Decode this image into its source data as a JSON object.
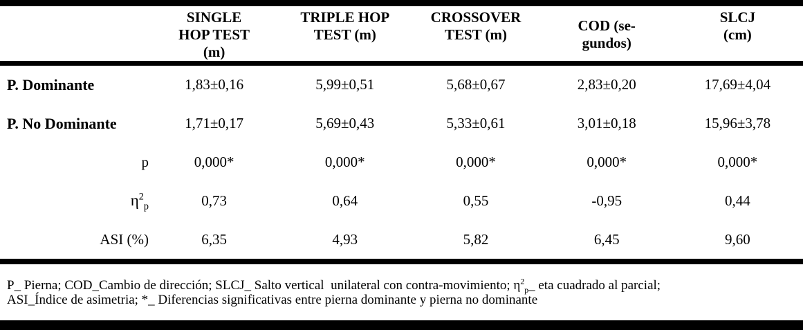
{
  "table": {
    "header_cols": [
      {
        "lines": [
          "SINGLE",
          "HOP TEST",
          "(m)"
        ]
      },
      {
        "lines": [
          "TRIPLE HOP",
          "TEST (m)",
          ""
        ]
      },
      {
        "lines": [
          "CROSSOVER",
          "TEST (m)",
          ""
        ]
      },
      {
        "lines": [
          "COD (se-",
          "gundos)",
          ""
        ]
      },
      {
        "lines": [
          "SLCJ",
          "(cm)",
          ""
        ]
      }
    ],
    "rows": [
      {
        "label": "P. Dominante",
        "values": [
          "1,83±0,16",
          "5,99±0,51",
          "5,68±0,67",
          "2,83±0,20",
          "17,69±4,04"
        ]
      },
      {
        "label": "P. No Dominante",
        "values": [
          "1,71±0,17",
          "5,69±0,43",
          "5,33±0,61",
          "3,01±0,18",
          "15,96±3,78"
        ]
      },
      {
        "label": "p",
        "values": [
          "0,000*",
          "0,000*",
          "0,000*",
          "0,000*",
          "0,000*"
        ]
      },
      {
        "label_base": "η",
        "label_sup": "2",
        "label_sub": "p",
        "values": [
          "0,73",
          "0,64",
          "0,55",
          "-0,95",
          "0,44"
        ]
      },
      {
        "label": "ASI (%)",
        "values": [
          "6,35",
          "4,93",
          "5,82",
          "6,45",
          "9,60"
        ]
      }
    ]
  },
  "footnote": {
    "line1_pre": "P_ Pierna; COD_Cambio de dirección; SLCJ_ Salto vertical  unilateral con contra-movimiento; ",
    "eta_base": "η",
    "eta_sup": "2",
    "eta_sub": "p",
    "line1_post": "_ eta cuadrado al parcial;",
    "line2": "ASI_Índice de asimetria; *_ Diferencias significativas entre pierna dominante y pierna no dominante"
  },
  "colors": {
    "background": "#ffffff",
    "text": "#000000",
    "rule": "#000000"
  }
}
